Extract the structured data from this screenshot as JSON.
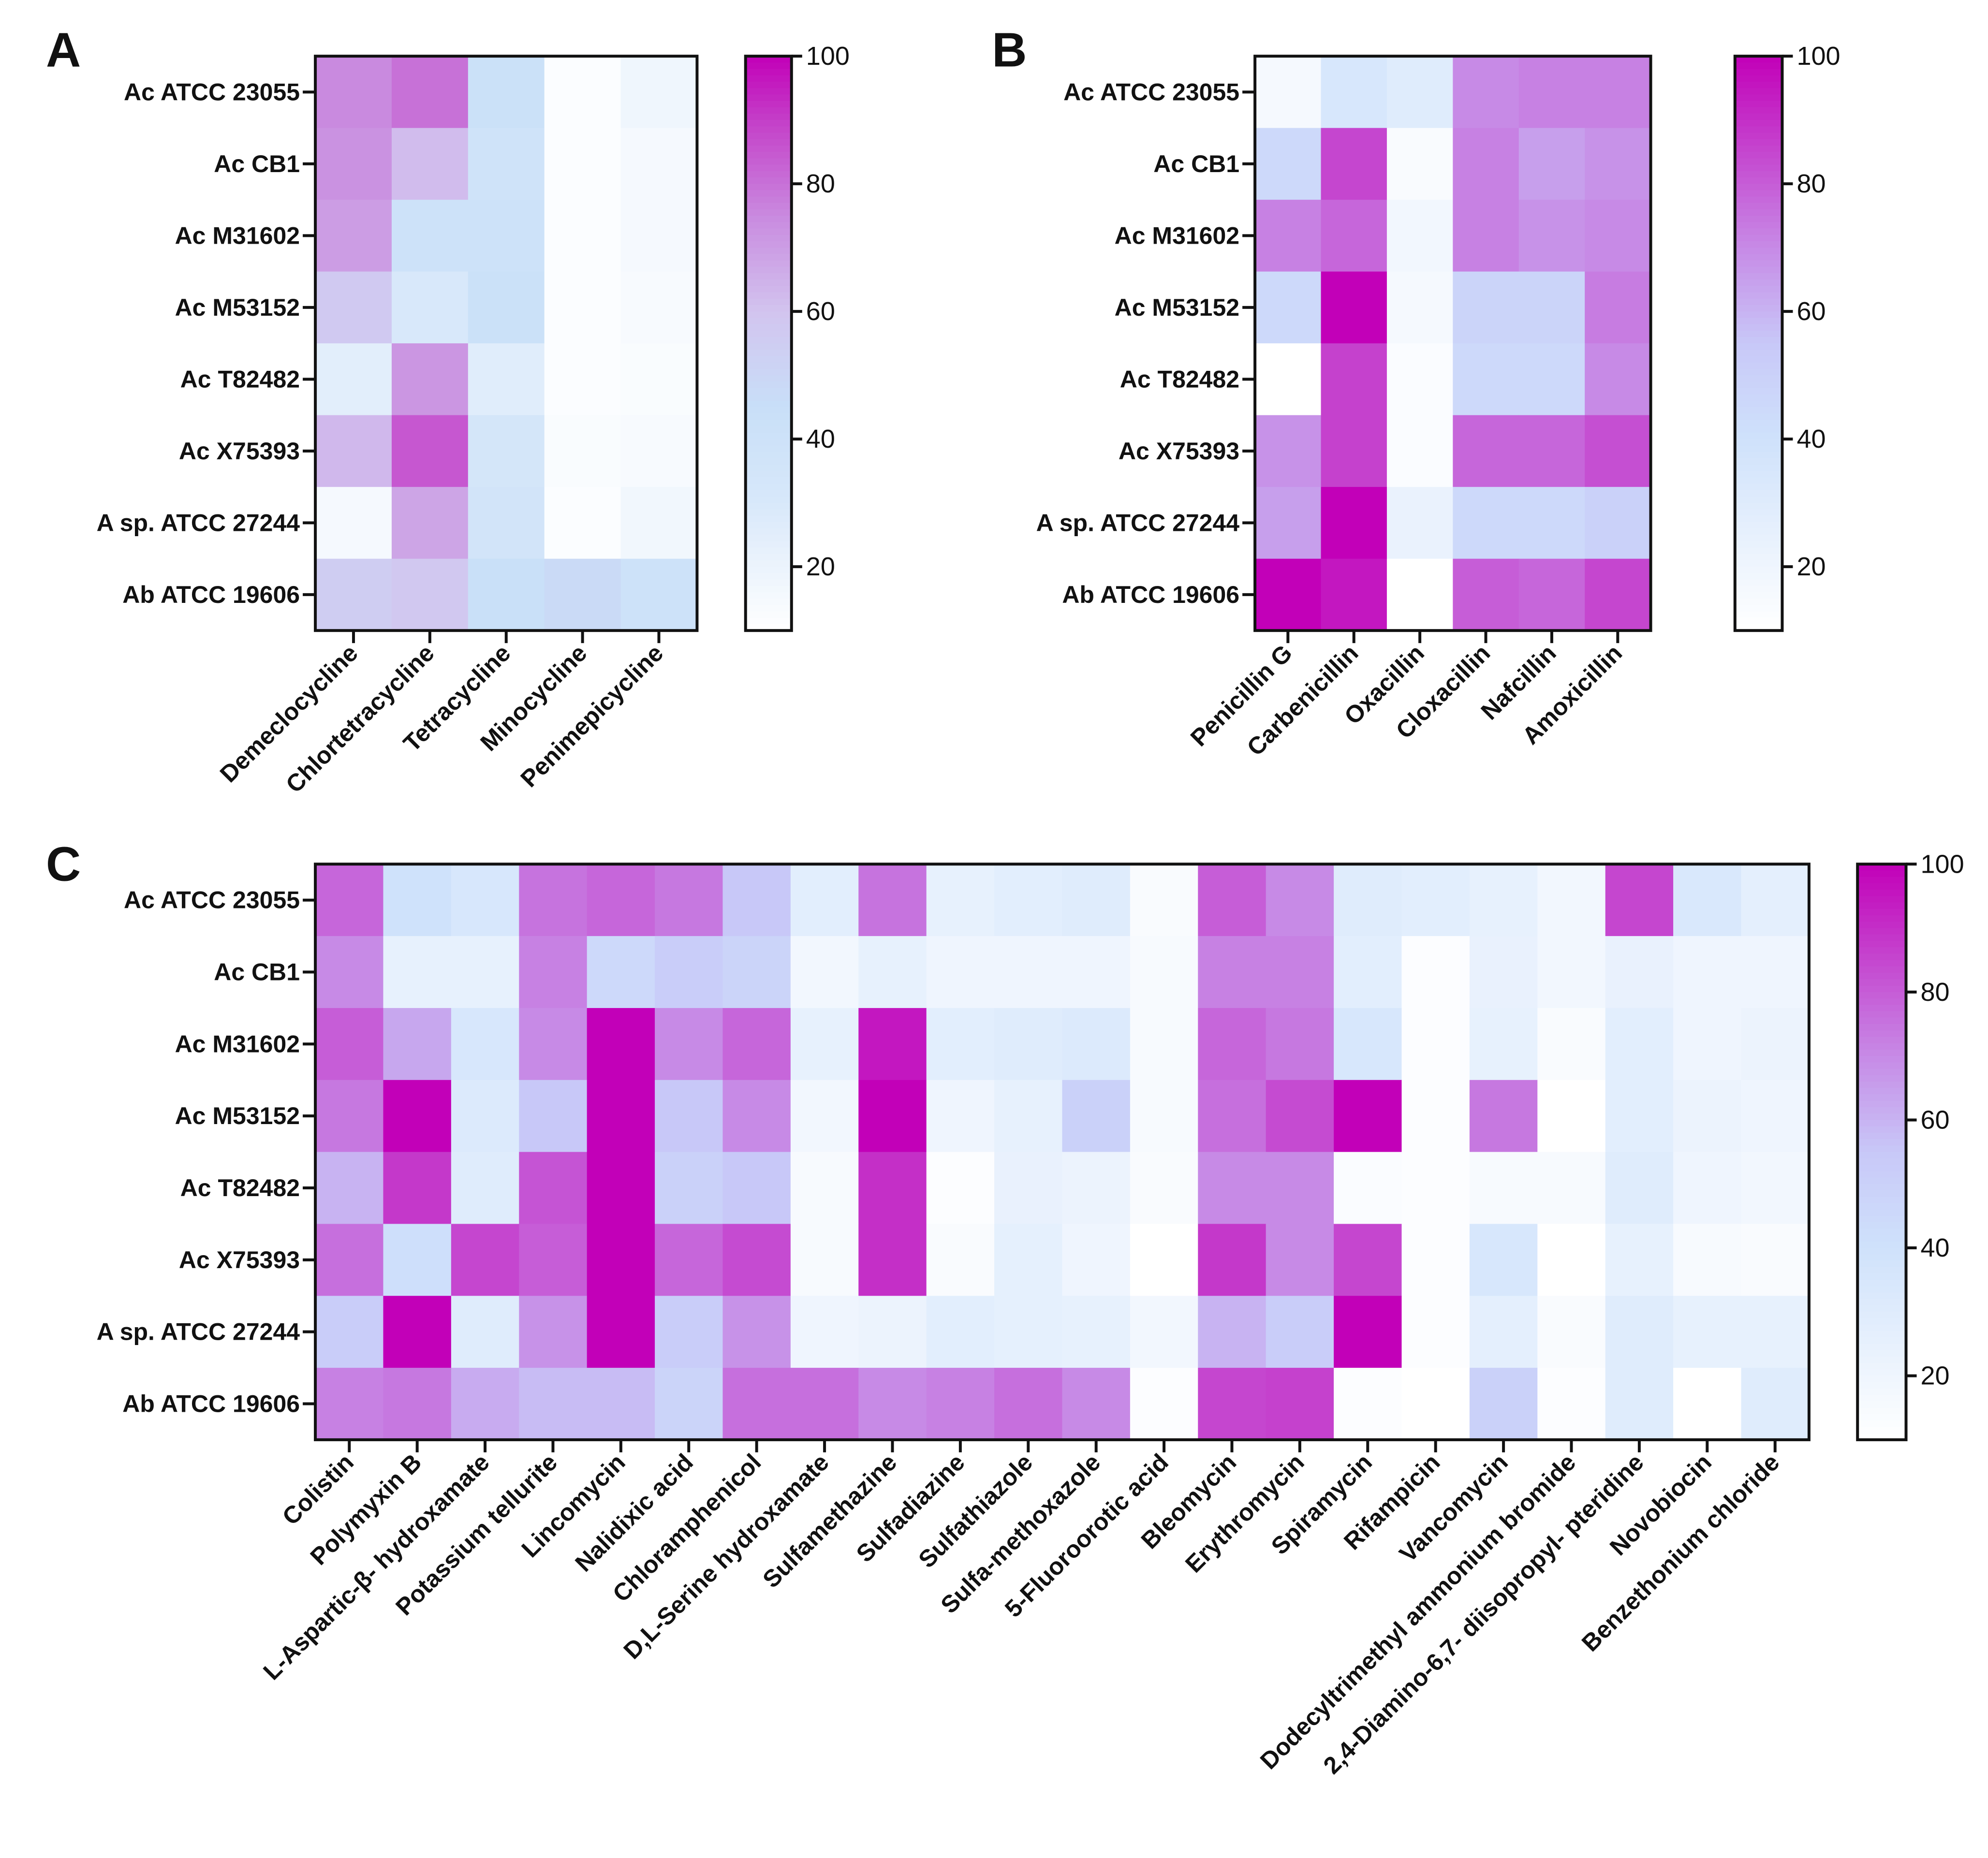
{
  "panel_labels": [
    "A",
    "B",
    "C"
  ],
  "colorbar": {
    "ticks": [
      20,
      40,
      60,
      80,
      100
    ],
    "range": [
      10,
      100
    ],
    "stops": [
      {
        "v": 10,
        "color": "#ffffff"
      },
      {
        "v": 40,
        "color": "#cfe2fb"
      },
      {
        "v": 55,
        "color": "#c8c8f8"
      },
      {
        "v": 70,
        "color": "#c78ae6"
      },
      {
        "v": 85,
        "color": "#c546cf"
      },
      {
        "v": 100,
        "color": "#c200b8"
      }
    ]
  },
  "colorbar_a_stops": [
    {
      "v": 10,
      "color": "#ffffff"
    },
    {
      "v": 30,
      "color": "#d8e8fa"
    },
    {
      "v": 45,
      "color": "#c8dff8"
    },
    {
      "v": 60,
      "color": "#d2c4ef"
    },
    {
      "v": 75,
      "color": "#c98adf"
    },
    {
      "v": 90,
      "color": "#c43ec8"
    },
    {
      "v": 100,
      "color": "#c200b8"
    }
  ],
  "chart_data": [
    {
      "type": "heatmap",
      "panel": "A",
      "rows": [
        "Ac ATCC 23055",
        "Ac CB1",
        "Ac M31602",
        "Ac M53152",
        "Ac T82482",
        "Ac X75393",
        "A sp. ATCC 27244",
        "Ab ATCC 19606"
      ],
      "columns": [
        "Demeclocycline",
        "Chlortetracycline",
        "Tetracycline",
        "Minocycline",
        "Penimepicycline"
      ],
      "values": [
        [
          75,
          80,
          42,
          12,
          18
        ],
        [
          73,
          62,
          38,
          12,
          15
        ],
        [
          70,
          40,
          40,
          12,
          15
        ],
        [
          57,
          30,
          42,
          12,
          14
        ],
        [
          25,
          72,
          26,
          12,
          13
        ],
        [
          63,
          85,
          34,
          13,
          14
        ],
        [
          15,
          68,
          36,
          12,
          17
        ],
        [
          55,
          58,
          44,
          48,
          40
        ]
      ],
      "colorbar_ticks": [
        20,
        40,
        60,
        80,
        100
      ]
    },
    {
      "type": "heatmap",
      "panel": "B",
      "rows": [
        "Ac ATCC 23055",
        "Ac CB1",
        "Ac M31602",
        "Ac M53152",
        "Ac T82482",
        "Ac X75393",
        "A sp. ATCC 27244",
        "Ab ATCC 19606"
      ],
      "columns": [
        "Penicillin G",
        "Carbenicillin",
        "Oxacillin",
        "Cloxacillin",
        "Nafcillin",
        "Amoxicillin"
      ],
      "values": [
        [
          16,
          35,
          30,
          70,
          72,
          72
        ],
        [
          45,
          85,
          14,
          72,
          65,
          68
        ],
        [
          72,
          78,
          18,
          72,
          68,
          70
        ],
        [
          45,
          100,
          16,
          48,
          48,
          73
        ],
        [
          10,
          86,
          13,
          45,
          45,
          70
        ],
        [
          68,
          86,
          13,
          78,
          78,
          83
        ],
        [
          65,
          100,
          23,
          45,
          45,
          50
        ],
        [
          100,
          95,
          10,
          80,
          78,
          85
        ]
      ],
      "colorbar_ticks": [
        20,
        40,
        60,
        80,
        100
      ]
    },
    {
      "type": "heatmap",
      "panel": "C",
      "rows": [
        "Ac ATCC 23055",
        "Ac CB1",
        "Ac M31602",
        "Ac M53152",
        "Ac T82482",
        "Ac X75393",
        "A sp. ATCC 27244",
        "Ab ATCC 19606"
      ],
      "columns": [
        "Colistin",
        "Polymyxin B",
        "L-Aspartic-β- hydroxamate",
        "Potassium tellurite",
        "Lincomycin",
        "Nalidixic acid",
        "Chloramphenicol",
        "D,L-Serine hydroxamate",
        "Sulfamethazine",
        "Sulfadiazine",
        "Sulfathiazole",
        "Sulfa-methoxazole",
        "5-Fluoroorotic acid",
        "Bleomycin",
        "Erythromycin",
        "Spiramycin",
        "Rifampicin",
        "Vancomycin",
        "Dodecyltrimethyl ammonium bromide",
        "2,4-Diamino-6,7- diisopropyl- pteridine",
        "Novobiocin",
        "Benzethonium chloride"
      ],
      "values": [
        [
          78,
          40,
          35,
          75,
          78,
          74,
          55,
          28,
          75,
          25,
          28,
          30,
          14,
          80,
          70,
          30,
          28,
          25,
          18,
          85,
          34,
          27
        ],
        [
          70,
          25,
          25,
          72,
          45,
          52,
          48,
          18,
          25,
          20,
          20,
          20,
          15,
          72,
          72,
          28,
          12,
          24,
          18,
          24,
          20,
          20
        ],
        [
          80,
          63,
          35,
          70,
          100,
          70,
          78,
          25,
          95,
          28,
          30,
          32,
          15,
          78,
          74,
          35,
          12,
          25,
          14,
          28,
          20,
          22
        ],
        [
          74,
          100,
          32,
          55,
          100,
          55,
          70,
          18,
          100,
          20,
          25,
          50,
          15,
          76,
          84,
          100,
          12,
          74,
          10,
          28,
          22,
          20
        ],
        [
          60,
          88,
          30,
          82,
          100,
          50,
          55,
          15,
          90,
          12,
          24,
          22,
          14,
          70,
          70,
          13,
          12,
          15,
          15,
          30,
          20,
          18
        ],
        [
          76,
          42,
          85,
          80,
          100,
          78,
          84,
          15,
          90,
          14,
          26,
          20,
          10,
          88,
          70,
          85,
          12,
          35,
          10,
          25,
          15,
          14
        ],
        [
          52,
          100,
          30,
          68,
          100,
          52,
          68,
          20,
          22,
          28,
          26,
          25,
          18,
          60,
          52,
          100,
          12,
          27,
          14,
          30,
          25,
          25
        ],
        [
          72,
          74,
          62,
          58,
          58,
          48,
          76,
          76,
          70,
          72,
          76,
          70,
          12,
          85,
          86,
          12,
          10,
          50,
          12,
          30,
          10,
          30
        ]
      ],
      "colorbar_ticks": [
        20,
        40,
        60,
        80,
        100
      ]
    }
  ]
}
